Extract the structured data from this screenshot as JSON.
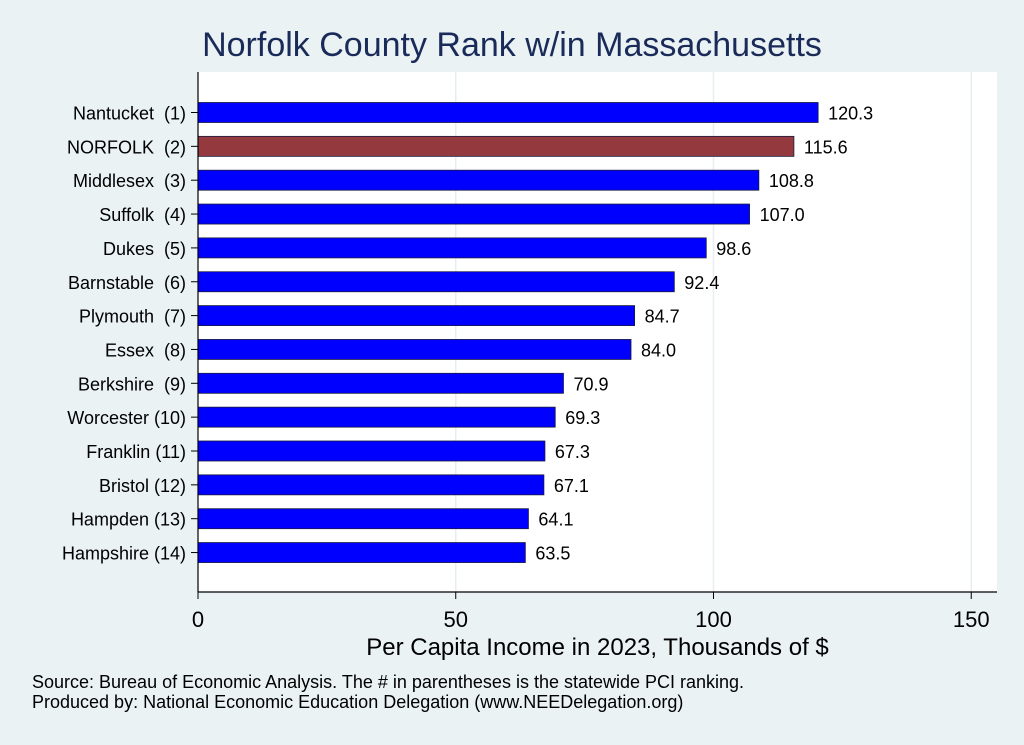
{
  "chart_data": {
    "type": "bar",
    "orientation": "horizontal",
    "title": "Norfolk County Rank w/in Massachusetts",
    "xlabel": "Per Capita Income in 2023, Thousands of $",
    "ylabel": "",
    "xlim": [
      0,
      155
    ],
    "xticks": [
      0,
      50,
      100,
      150
    ],
    "grid": true,
    "categories": [
      "Nantucket  (1)",
      "NORFOLK  (2)",
      "Middlesex  (3)",
      "Suffolk  (4)",
      "Dukes  (5)",
      "Barnstable  (6)",
      "Plymouth  (7)",
      "Essex  (8)",
      "Berkshire  (9)",
      "Worcester (10)",
      "Franklin (11)",
      "Bristol (12)",
      "Hampden (13)",
      "Hampshire (14)"
    ],
    "values": [
      120.3,
      115.6,
      108.8,
      107.0,
      98.6,
      92.4,
      84.7,
      84.0,
      70.9,
      69.3,
      67.3,
      67.1,
      64.1,
      63.5
    ],
    "value_labels": [
      "120.3",
      "115.6",
      "108.8",
      "107.0",
      "98.6",
      "92.4",
      "84.7",
      "84.0",
      "70.9",
      "69.3",
      "67.3",
      "67.1",
      "64.1",
      "63.5"
    ],
    "highlight_index": 1,
    "colors": {
      "bar": "#0000ff",
      "highlight": "#943a3e",
      "background": "#eaf2f3",
      "plot": "#ffffff",
      "grid": "#e6eef0",
      "title": "#1a2b5a"
    }
  },
  "notes": {
    "source": "Source: Bureau of Economic Analysis. The # in parentheses is the statewide PCI ranking.",
    "producer": "Produced by: National Economic Education Delegation (www.NEEDelegation.org)"
  }
}
